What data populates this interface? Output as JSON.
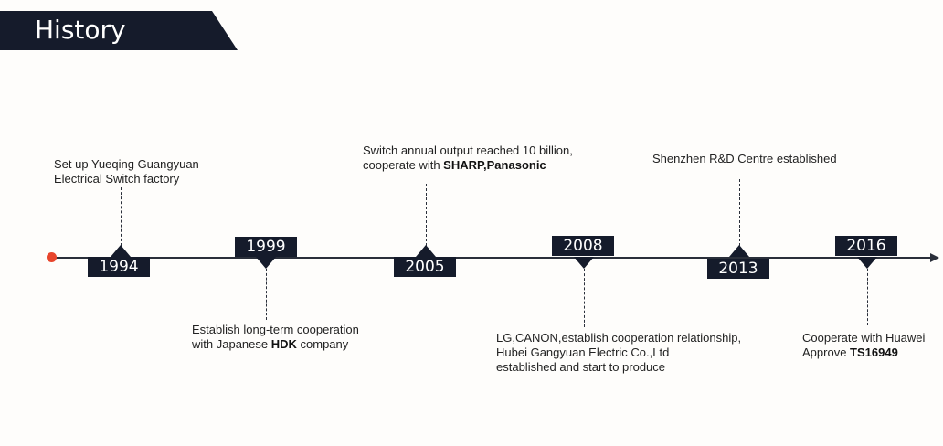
{
  "header": {
    "title": "History"
  },
  "timeline": {
    "events": [
      {
        "year": "1994",
        "lines": [
          "Set up Yueqing  Guangyuan",
          "Electrical Switch factory"
        ]
      },
      {
        "year": "1999",
        "line1": "Establish long-term cooperation",
        "line2_pre": "with Japanese ",
        "line2_bold": "HDK",
        "line2_post": " company"
      },
      {
        "year": "2005",
        "line1": "Switch annual output reached 10 billion,",
        "line2_pre": "cooperate with ",
        "line2_bold1": "SHARP",
        "line2_mid": ",",
        "line2_bold2": "Panasonic"
      },
      {
        "year": "2008",
        "lines": [
          "LG,CANON,establish cooperation relationship,",
          "Hubei Gangyuan Electric Co.,Ltd",
          "established and start to produce"
        ]
      },
      {
        "year": "2013",
        "lines": [
          "Shenzhen R&D Centre established"
        ]
      },
      {
        "year": "2016",
        "line1": "Cooperate with Huawei",
        "line2_pre": "Approve ",
        "line2_bold": "TS16949"
      }
    ]
  }
}
